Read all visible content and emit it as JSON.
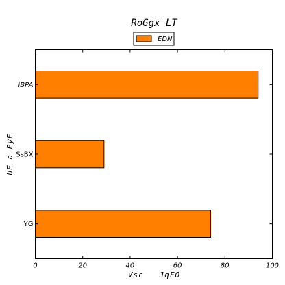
{
  "chart_data": {
    "type": "bar",
    "orientation": "horizontal",
    "title": "RoGgx LT",
    "xlabel": "Vsc   JqFO",
    "ylabel": "UE a EyE",
    "categories": [
      "YG",
      "SsBX",
      "iBPA"
    ],
    "series": [
      {
        "name": "EDN",
        "values": [
          74,
          29,
          94
        ],
        "color": "#ff7f00"
      }
    ],
    "xlim": [
      0,
      100
    ],
    "xticks": [
      0,
      20,
      40,
      60,
      80,
      100
    ],
    "grid": false,
    "legend": "top-center"
  }
}
